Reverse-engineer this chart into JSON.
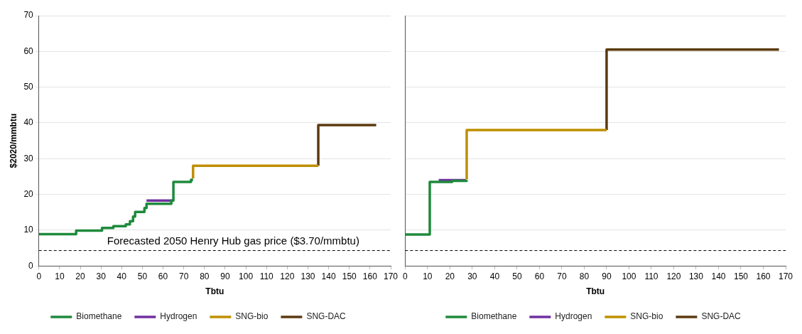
{
  "chart_data": [
    {
      "type": "step",
      "xlabel": "Tbtu",
      "ylabel": "$2020/mmbtu",
      "xlim": [
        0,
        170
      ],
      "xticks": [
        0,
        10,
        20,
        30,
        40,
        50,
        60,
        70,
        80,
        90,
        100,
        110,
        120,
        130,
        140,
        150,
        160,
        170
      ],
      "ylim": [
        0,
        70
      ],
      "yticks": [
        0,
        10,
        20,
        30,
        40,
        50,
        60,
        70
      ],
      "grid": "y",
      "legend": "bottom",
      "marker": "none",
      "line_style": "solid",
      "series": [
        {
          "name": "Biomethane",
          "color": "#1e8a3c",
          "x": [
            0,
            18,
            30.5,
            36,
            42,
            44,
            45.5,
            46.5,
            51,
            52,
            64,
            65,
            73.5,
            74.5
          ],
          "values": [
            8.9,
            9.9,
            10.6,
            11.1,
            11.6,
            12.5,
            13.8,
            15.1,
            16.2,
            17.4,
            18.3,
            23.5,
            24.1,
            24.1
          ]
        },
        {
          "name": "Hydrogen",
          "color": "#7030a0",
          "x": [
            52,
            64.5
          ],
          "values": [
            18.3,
            18.3
          ]
        },
        {
          "name": "SNG-bio",
          "color": "#bf8f00",
          "x": [
            74.5,
            74.5,
            135
          ],
          "values": [
            24.5,
            28,
            28
          ]
        },
        {
          "name": "SNG-DAC",
          "color": "#5b3a0f",
          "x": [
            135,
            135,
            163
          ],
          "values": [
            28,
            39.4,
            39.4
          ]
        }
      ],
      "ref_lines": [
        {
          "axis": "y",
          "value": 4.3,
          "label": "Forecasted 2050 Henry Hub gas price ($3.70/mmbtu)",
          "color": "#000000",
          "line_style": "dashed"
        }
      ]
    },
    {
      "type": "step",
      "xlabel": "Tbtu",
      "xlim": [
        0,
        170
      ],
      "xticks": [
        0,
        10,
        20,
        30,
        40,
        50,
        60,
        70,
        80,
        90,
        100,
        110,
        120,
        130,
        140,
        150,
        160,
        170
      ],
      "ylim": [
        0,
        70
      ],
      "yticks": [
        0,
        10,
        20,
        30,
        40,
        50,
        60,
        70
      ],
      "tick_labels": "x",
      "grid": "y",
      "legend": "bottom",
      "marker": "none",
      "line_style": "solid",
      "series": [
        {
          "name": "Biomethane",
          "color": "#1e8a3c",
          "x": [
            0,
            11,
            21,
            27.5
          ],
          "values": [
            8.8,
            23.5,
            23.8,
            24
          ]
        },
        {
          "name": "Hydrogen",
          "color": "#7030a0",
          "x": [
            15,
            27
          ],
          "values": [
            24,
            24
          ]
        },
        {
          "name": "SNG-bio",
          "color": "#bf8f00",
          "x": [
            27.5,
            27.5,
            90
          ],
          "values": [
            24.2,
            38,
            38
          ]
        },
        {
          "name": "SNG-DAC",
          "color": "#5b3a0f",
          "x": [
            90,
            90,
            167
          ],
          "values": [
            38,
            60.5,
            60.5
          ]
        }
      ],
      "ref_lines": [
        {
          "axis": "y",
          "value": 4.3,
          "color": "#000000",
          "line_style": "dashed"
        }
      ]
    }
  ]
}
